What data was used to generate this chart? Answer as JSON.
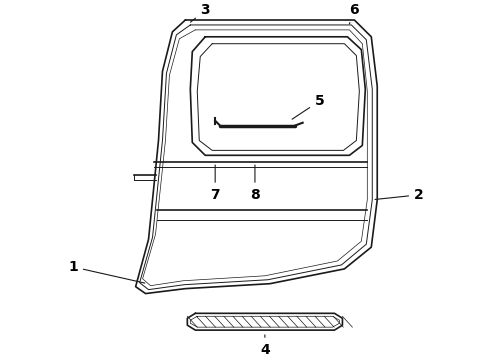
{
  "bg_color": "#ffffff",
  "line_color": "#1a1a1a",
  "lw_outer": 1.2,
  "lw_inner": 0.7,
  "lw_thin": 0.5,
  "label_fontsize": 10,
  "label_fontweight": "bold"
}
